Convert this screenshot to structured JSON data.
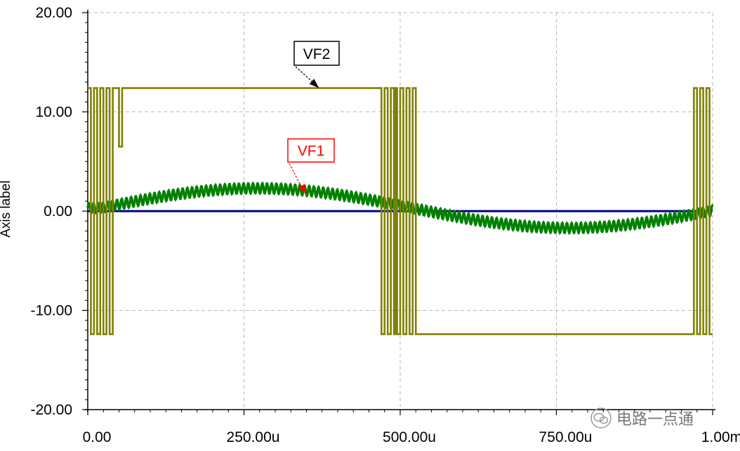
{
  "chart_data": {
    "type": "line",
    "ylabel": "Axis label",
    "xlim": [
      0,
      0.001
    ],
    "ylim": [
      -20,
      20
    ],
    "x_ticks": [
      "0.00",
      "250.00u",
      "500.00u",
      "750.00u",
      "1.00m"
    ],
    "y_ticks": [
      "20.00",
      "10.00",
      "0.00",
      "-10.00",
      "-20.00"
    ],
    "grid": true,
    "series": [
      {
        "name": "VF1",
        "color": "#008000",
        "shape": "sine with superimposed ripple",
        "amplitude": 2.0,
        "period": 0.001,
        "ripple_amplitude": 0.5,
        "points": [
          {
            "x": 0,
            "y": 0.3
          },
          {
            "x": 5e-05,
            "y": 0.7
          },
          {
            "x": 0.0001,
            "y": 1.1
          },
          {
            "x": 0.00015,
            "y": 1.5
          },
          {
            "x": 0.0002,
            "y": 1.85
          },
          {
            "x": 0.00025,
            "y": 2.0
          },
          {
            "x": 0.0003,
            "y": 1.95
          },
          {
            "x": 0.00035,
            "y": 1.7
          },
          {
            "x": 0.0004,
            "y": 1.3
          },
          {
            "x": 0.00045,
            "y": 0.75
          },
          {
            "x": 0.0005,
            "y": 0.15
          },
          {
            "x": 0.00055,
            "y": -0.5
          },
          {
            "x": 0.0006,
            "y": -1.05
          },
          {
            "x": 0.00065,
            "y": -1.5
          },
          {
            "x": 0.0007,
            "y": -1.8
          },
          {
            "x": 0.00075,
            "y": -1.95
          },
          {
            "x": 0.0008,
            "y": -1.85
          },
          {
            "x": 0.00085,
            "y": -1.55
          },
          {
            "x": 0.0009,
            "y": -1.05
          },
          {
            "x": 0.00095,
            "y": -0.5
          },
          {
            "x": 0.001,
            "y": 0.0
          }
        ]
      },
      {
        "name": "VF2",
        "color": "#808000",
        "shape": "square wave with switching chatter",
        "high": 12.4,
        "low": -12.4,
        "points": [
          {
            "x": 0,
            "y": 12.4
          },
          {
            "x": 2e-05,
            "y": -12.4
          },
          {
            "x": 4e-05,
            "y": 12.4
          },
          {
            "x": 6e-05,
            "y": 6.5
          },
          {
            "x": 7e-05,
            "y": 12.4
          },
          {
            "x": 0.00048,
            "y": 12.4
          },
          {
            "x": 0.00049,
            "y": -12.4
          },
          {
            "x": 0.0005,
            "y": 12.4
          },
          {
            "x": 0.00051,
            "y": -12.4
          },
          {
            "x": 0.00052,
            "y": 12.4
          },
          {
            "x": 0.00053,
            "y": -12.4
          },
          {
            "x": 0.001,
            "y": -12.4
          }
        ]
      },
      {
        "name": "",
        "color": "#000080",
        "shape": "flat line",
        "points": [
          {
            "x": 0,
            "y": 0
          },
          {
            "x": 0.001,
            "y": 0
          }
        ]
      }
    ],
    "annotations": [
      {
        "text": "VF2",
        "color": "#000000",
        "target_x": 0.00037,
        "target_y": 12.4
      },
      {
        "text": "VF1",
        "color": "#ff0000",
        "target_x": 0.00035,
        "target_y": 1.7
      }
    ]
  },
  "watermark": {
    "icon": "wechat-icon",
    "text": "电路一点通"
  }
}
